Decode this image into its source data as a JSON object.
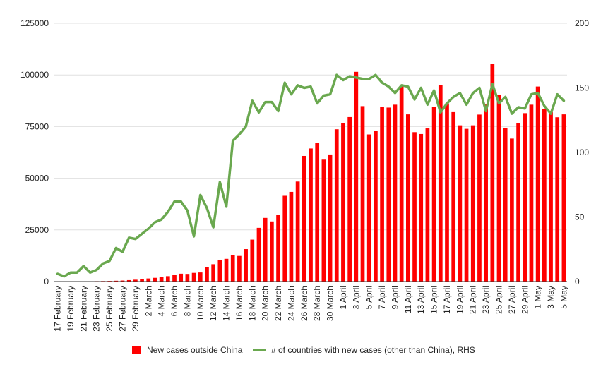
{
  "colors": {
    "bars": "#ff0000",
    "line": "#6aa84f",
    "axis": "#333333",
    "grid": "#e0e0e0"
  },
  "chart_data": {
    "type": "bar",
    "grid": true,
    "legend_position": "bottom",
    "x_tick_labels": [
      "17 February",
      "19 February",
      "21 February",
      "23 February",
      "25 February",
      "27 February",
      "29 February",
      "2 March",
      "4 March",
      "6 March",
      "8 March",
      "10 March",
      "12 March",
      "14 March",
      "16 March",
      "18 March",
      "20 March",
      "22 March",
      "24 March",
      "26 March",
      "28 March",
      "30 March",
      "1 April",
      "3 April",
      "5 April",
      "7 April",
      "9 April",
      "11 April",
      "13 April",
      "15 April",
      "17 April",
      "19 April",
      "21 April",
      "23 April",
      "25 April",
      "27 April",
      "29 April",
      "1 May",
      "3 May",
      "5 May"
    ],
    "left_axis": {
      "ylim": [
        0,
        125000
      ],
      "ticks": [
        "0",
        "25000",
        "50000",
        "75000",
        "100000",
        "125000"
      ]
    },
    "right_axis": {
      "ylim": [
        0,
        200
      ],
      "ticks": [
        "0",
        "50",
        "100",
        "150",
        "200"
      ]
    },
    "series": [
      {
        "name": "New cases outside China",
        "axis": "left",
        "type": "bar",
        "values": [
          50,
          60,
          80,
          100,
          110,
          150,
          200,
          250,
          300,
          400,
          500,
          700,
          900,
          1300,
          1500,
          1800,
          2100,
          2600,
          3300,
          3800,
          3700,
          4200,
          4400,
          7100,
          8400,
          10400,
          11000,
          12800,
          12400,
          15700,
          20300,
          26000,
          30800,
          29100,
          32300,
          41500,
          43400,
          48400,
          60800,
          64400,
          67000,
          59000,
          61500,
          73700,
          76600,
          79600,
          101500,
          84900,
          71200,
          72900,
          84700,
          84200,
          85600,
          94500,
          80900,
          72300,
          71400,
          74100,
          84500,
          95000,
          86200,
          82000,
          75600,
          73900,
          75600,
          80800,
          85700,
          105400,
          90500,
          74200,
          69200,
          76500,
          81500,
          85600,
          94400,
          83400,
          82100,
          79500,
          80900
        ]
      },
      {
        "name": "# of countries with new cases (other than China), RHS",
        "axis": "right",
        "type": "line",
        "values": [
          6,
          4,
          7,
          7,
          12,
          7,
          9,
          14,
          16,
          26,
          23,
          34,
          33,
          37,
          41,
          46,
          48,
          54,
          62,
          62,
          55,
          35,
          67,
          57,
          42,
          77,
          58,
          109,
          114,
          120,
          140,
          131,
          139,
          139,
          132,
          154,
          145,
          152,
          150,
          151,
          138,
          144,
          145,
          160,
          156,
          159,
          158,
          157,
          157,
          160,
          154,
          151,
          146,
          152,
          151,
          141,
          150,
          137,
          148,
          131,
          138,
          143,
          146,
          137,
          146,
          150,
          132,
          153,
          138,
          143,
          130,
          135,
          134,
          145,
          146,
          136,
          130,
          145,
          140
        ]
      }
    ]
  },
  "legend": [
    {
      "label": "New cases outside China",
      "color": "#ff0000",
      "kind": "swatch"
    },
    {
      "label": "# of countries with new cases (other than China), RHS",
      "color": "#6aa84f",
      "kind": "line"
    }
  ]
}
